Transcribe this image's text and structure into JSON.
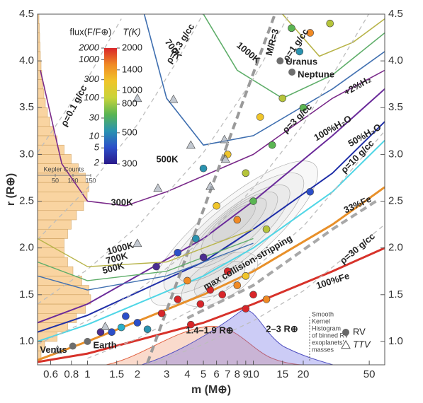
{
  "chart_data": {
    "type": "scatter",
    "x_label": "m (M⊕)",
    "y_label": "r (R⊕)",
    "xscale": "log",
    "xlim": [
      0.5,
      62
    ],
    "ylim": [
      0.75,
      4.5
    ],
    "xticks": [
      0.6,
      0.8,
      1,
      1.5,
      2,
      3,
      4,
      5,
      6,
      7,
      8,
      9,
      10,
      15,
      20,
      50
    ],
    "yticks": [
      {
        "value": 1,
        "label": "1.0"
      },
      1.5,
      {
        "value": 2,
        "label": "2.0"
      },
      2.5,
      {
        "value": 3,
        "label": "3.0"
      },
      3.5,
      {
        "value": 4,
        "label": "4.0"
      },
      4.5
    ],
    "lines": [
      {
        "name": "100%Fe",
        "color": "#d7322a",
        "x": [
          0.5,
          1,
          5,
          10,
          30,
          62
        ],
        "values": [
          0.78,
          0.87,
          1.2,
          1.4,
          1.75,
          2.0
        ]
      },
      {
        "name": "33%Fe",
        "color": "#e8902a",
        "x": [
          0.5,
          1,
          5,
          10,
          30,
          62
        ],
        "values": [
          0.8,
          1.0,
          1.5,
          1.75,
          2.25,
          2.65
        ]
      },
      {
        "name": "50%H₂O",
        "color": "#4fd6e6",
        "x": [
          0.5,
          1,
          5,
          10,
          30,
          62
        ],
        "values": [
          1.0,
          1.18,
          1.7,
          2.0,
          2.6,
          3.15
        ]
      },
      {
        "name": "100%H₂O",
        "color": "#1f2fa8",
        "x": [
          0.5,
          1,
          5,
          10,
          30,
          62
        ],
        "values": [
          1.1,
          1.28,
          1.85,
          2.2,
          2.8,
          3.35
        ]
      },
      {
        "name": "+2%H₂",
        "color": "#6a2a9a",
        "x": [
          0.5,
          1,
          5,
          10,
          30,
          62
        ],
        "values": [
          1.2,
          1.4,
          2.1,
          2.5,
          3.2,
          3.7
        ]
      },
      {
        "name": "300K",
        "color": "#7a2a8a",
        "x": [
          0.52,
          0.7,
          1,
          1.7,
          3,
          10,
          30,
          62
        ],
        "values": [
          3.9,
          2.9,
          2.5,
          2.45,
          2.6,
          3.0,
          3.6,
          3.9
        ]
      },
      {
        "name": "500K",
        "color": "#3f6fb0",
        "x": [
          2.2,
          3,
          5,
          10,
          30,
          62
        ],
        "values": [
          4.5,
          3.6,
          3.1,
          3.2,
          3.7,
          4.1
        ]
      },
      {
        "name": "700K",
        "color": "#5fae6a",
        "x": [
          5,
          8,
          15,
          30,
          62
        ],
        "values": [
          4.5,
          3.9,
          3.6,
          3.85,
          4.3
        ]
      },
      {
        "name": "1000K",
        "color": "#b8b44a",
        "x": [
          15,
          25,
          40,
          62
        ],
        "values": [
          4.5,
          4.05,
          4.2,
          4.45
        ]
      },
      {
        "name": "ρ=0.1 g/cc",
        "color": "#bdbdbd",
        "x": [
          0.5,
          1,
          1.6
        ],
        "values": [
          3.02,
          3.81,
          4.45
        ]
      },
      {
        "name": "ρ=0.3 g/cc",
        "color": "#bdbdbd",
        "x": [
          0.5,
          1,
          2,
          3.5,
          5
        ],
        "values": [
          2.09,
          2.64,
          3.32,
          4.01,
          4.51
        ]
      },
      {
        "name": "ρ=1 g/cc",
        "color": "#bdbdbd",
        "x": [
          0.5,
          1,
          2,
          5,
          10,
          17
        ],
        "values": [
          1.4,
          1.77,
          2.23,
          3.02,
          3.81,
          4.54
        ]
      },
      {
        "name": "ρ=3 g/cc",
        "color": "#bdbdbd",
        "x": [
          0.5,
          1,
          2,
          5,
          10,
          20,
          50
        ],
        "values": [
          0.97,
          1.22,
          1.54,
          2.09,
          2.64,
          3.32,
          4.51
        ]
      },
      {
        "name": "ρ=10 g/cc",
        "color": "#bdbdbd",
        "x": [
          1,
          2,
          5,
          10,
          20,
          62
        ],
        "values": [
          0.82,
          1.03,
          1.4,
          1.77,
          2.23,
          3.25
        ]
      },
      {
        "name": "ρ=30 g/cc",
        "color": "#bdbdbd",
        "x": [
          2.5,
          5,
          10,
          20,
          62
        ],
        "values": [
          0.77,
          0.97,
          1.22,
          1.54,
          2.25
        ]
      },
      {
        "name": "M/R=3",
        "color": "#9a9a9a",
        "x": [
          2.3,
          13.5
        ],
        "values": [
          0.77,
          4.5
        ]
      },
      {
        "name": "max collision-stripping",
        "color": "#a8a8a8",
        "x": [
          4,
          10,
          30,
          55
        ],
        "values": [
          1.25,
          1.6,
          2.2,
          2.5
        ]
      },
      {
        "name": "1000K",
        "color": "#b8b44a",
        "x": [
          0.5,
          1,
          3,
          10
        ],
        "values": [
          2.1,
          1.8,
          1.85,
          2.2
        ]
      },
      {
        "name": "700K",
        "color": "#5fae6a",
        "x": [
          0.5,
          1,
          3,
          10
        ],
        "values": [
          1.85,
          1.65,
          1.75,
          2.1
        ]
      },
      {
        "name": "500K",
        "color": "#3f6fb0",
        "x": [
          0.5,
          1,
          3,
          10
        ],
        "values": [
          1.7,
          1.55,
          1.7,
          2.05
        ]
      }
    ],
    "series": [
      {
        "name": "RV",
        "marker": "circle",
        "x": [
          29,
          17,
          22,
          19,
          15,
          20,
          11,
          13,
          7,
          5,
          9,
          22,
          10,
          6,
          8,
          12,
          4.5,
          3.5,
          2.6,
          5,
          7,
          4,
          5.5,
          6.5,
          8,
          9,
          10,
          12,
          4.8,
          3.5,
          9,
          2.8,
          2,
          1.6,
          2.3,
          1.4,
          1.7,
          4.2,
          1.2
        ],
        "values": [
          4.4,
          4.35,
          4.3,
          4.1,
          3.6,
          3.5,
          3.4,
          3.1,
          3.0,
          2.85,
          2.8,
          2.6,
          2.5,
          2.45,
          2.3,
          2.2,
          2.1,
          1.95,
          1.8,
          1.9,
          1.75,
          1.65,
          1.55,
          1.5,
          1.6,
          1.7,
          1.5,
          1.45,
          1.4,
          1.45,
          1.35,
          1.3,
          1.2,
          1.15,
          1.13,
          1.1,
          1.27,
          1.18,
          1.1
        ],
        "colors": [
          "#b5c43a",
          "#5ab552",
          "#f08a24",
          "#2a93b0",
          "#b5c43a",
          "#5ab552",
          "#f0c52a",
          "#5ab552",
          "#f0c52a",
          "#2a93b0",
          "#b5c43a",
          "#2c4fc9",
          "#5ab552",
          "#f0c52a",
          "#f08a24",
          "#b5c43a",
          "#2a93b0",
          "#2c4fc9",
          "#4b2c91",
          "#4b2c91",
          "#d8262a",
          "#f08a24",
          "#d8262a",
          "#d8262a",
          "#f08a24",
          "#f0c52a",
          "#d8262a",
          "#f08a24",
          "#d8262a",
          "#d8262a",
          "#d8262a",
          "#d8262a",
          "#2c4fc9",
          "#2ab0c9",
          "#2a93b0",
          "#2c4fc9",
          "#2c4fc9",
          "#d8262a",
          "#4b2c91"
        ]
      },
      {
        "name": "TTV",
        "marker": "triangle",
        "x": [
          2.0,
          3.3,
          4.2,
          6.7,
          6.8,
          2.66,
          5.5,
          2.0,
          1.28,
          0.66
        ],
        "values": [
          3.6,
          3.59,
          3.1,
          3.16,
          2.95,
          2.64,
          2.66,
          2.05,
          1.16,
          0.91
        ],
        "colors": [
          "#9aa4b0",
          "#9aa4b0",
          "#9aa4b0",
          "#9aa4b0",
          "#9aa4b0",
          "#9aa4b0",
          "#9aa4b0",
          "#9aa4b0",
          "#9aa4b0",
          "#9aa4b0"
        ]
      }
    ],
    "solar_system": {
      "names": [
        "Venus",
        "Earth",
        "Uranus",
        "Neptune"
      ],
      "x": [
        0.815,
        1,
        14.5,
        17.1
      ],
      "values": [
        0.95,
        1.0,
        4.0,
        3.88
      ],
      "color": "#6e6e6e"
    },
    "colorbar": {
      "flux_title": "flux(F/F⊕)",
      "flux_lim": [
        1.9,
        2000
      ],
      "flux_ticks": [
        2000,
        1000,
        300,
        100,
        30,
        10,
        5,
        2
      ],
      "t_title": "T(K)",
      "t_lim": [
        300,
        2000
      ],
      "t_ticks": [
        2000,
        1400,
        1000,
        800,
        500,
        300
      ],
      "colormap": [
        "#2a1a8a",
        "#2c4fc9",
        "#2a93b0",
        "#5ab552",
        "#c8d43a",
        "#f0c52a",
        "#f08a24",
        "#d8262a"
      ]
    },
    "histogram": {
      "title": "Kepler Counts",
      "color": "#f7c98a",
      "count_lim": [
        0,
        150
      ],
      "count_ticks": [
        50,
        100,
        150
      ],
      "bins": [
        0.8,
        0.9,
        1.0,
        1.1,
        1.2,
        1.3,
        1.4,
        1.5,
        1.6,
        1.7,
        1.8,
        1.9,
        2.0,
        2.1,
        2.2,
        2.3,
        2.4,
        2.5,
        2.6,
        2.7,
        2.8,
        2.9,
        3.0,
        3.1,
        3.2,
        3.3,
        3.4,
        3.5,
        3.6,
        3.7,
        3.8,
        3.9,
        4.0,
        4.1,
        4.2,
        4.3,
        4.4,
        4.5
      ],
      "counts": [
        10,
        20,
        55,
        85,
        110,
        135,
        150,
        145,
        125,
        100,
        85,
        75,
        75,
        85,
        95,
        110,
        130,
        140,
        145,
        135,
        115,
        95,
        75,
        55,
        45,
        35,
        28,
        22,
        18,
        15,
        12,
        10,
        8,
        7,
        6,
        5,
        4
      ]
    },
    "annotations": {
      "small_radius": "1.4–1.9 R⊕",
      "large_radius": "2–3 R⊕",
      "kernel_note": [
        "Smooth",
        "Kernel",
        "Histogram",
        "of binned RV",
        "exoplanets'",
        "masses"
      ]
    }
  }
}
